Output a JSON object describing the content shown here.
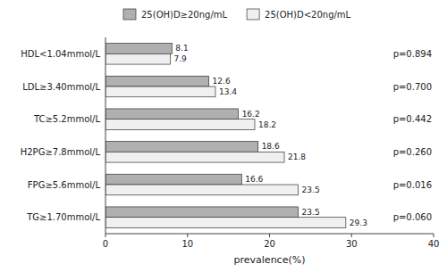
{
  "chart_data": {
    "type": "bar",
    "orientation": "horizontal",
    "categories": [
      "TG≥1.70mmol/L",
      "FPG≥5.6mmol/L",
      "H2PG≥7.8mmol/L",
      "TC≥5.2mmol/L",
      "LDL≥3.40mmol/L",
      "HDL<1.04mmol/L"
    ],
    "series": [
      {
        "name": "25(OH)D≥20ng/mL",
        "color": "#b0b0b0",
        "values": [
          23.5,
          16.6,
          18.6,
          16.2,
          12.6,
          8.1
        ]
      },
      {
        "name": "25(OH)D<20ng/mL",
        "color": "#f0f0f0",
        "values": [
          29.3,
          23.5,
          21.8,
          18.2,
          13.4,
          7.9
        ]
      }
    ],
    "annotations": [
      "p=0.060",
      "p=0.016",
      "p=0.260",
      "p=0.442",
      "p=0.700",
      "p=0.894"
    ],
    "xlabel": "prevalence(%)",
    "xlim": [
      0,
      40
    ],
    "xticks": [
      0,
      10,
      20,
      30,
      40
    ],
    "data_labels": true,
    "legend": "top",
    "grid": false
  }
}
